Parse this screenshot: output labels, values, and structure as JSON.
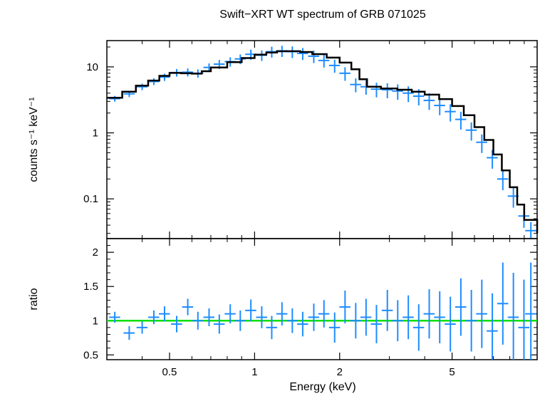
{
  "chart_data": [
    {
      "type": "scatter",
      "title": "Swift−XRT WT spectrum of GRB 071025",
      "xlabel": "Energy (keV)",
      "ylabel": "counts s⁻¹ keV⁻¹",
      "x_scale": "log",
      "y_scale": "log",
      "xlim": [
        0.3,
        10
      ],
      "ylim": [
        0.025,
        25
      ],
      "x_ticks": [
        {
          "value": 0.5,
          "label": "0.5"
        },
        {
          "value": 1,
          "label": "1"
        },
        {
          "value": 2,
          "label": "2"
        },
        {
          "value": 5,
          "label": "5"
        }
      ],
      "y_ticks": [
        {
          "value": 10,
          "label": "10"
        },
        {
          "value": 1,
          "label": "1"
        },
        {
          "value": 0.1,
          "label": "0.1"
        }
      ],
      "grid": false,
      "colors": {
        "data": "#1e8cff",
        "model": "#000000"
      },
      "series": [
        {
          "kind": "data",
          "x": [
            0.32,
            0.36,
            0.4,
            0.44,
            0.48,
            0.53,
            0.58,
            0.63,
            0.69,
            0.75,
            0.82,
            0.89,
            0.97,
            1.06,
            1.15,
            1.25,
            1.36,
            1.48,
            1.62,
            1.76,
            1.92,
            2.09,
            2.28,
            2.48,
            2.7,
            2.95,
            3.21,
            3.5,
            3.81,
            4.15,
            4.52,
            4.93,
            5.37,
            5.85,
            6.37,
            6.94,
            7.56,
            8.24,
            8.98,
            9.5
          ],
          "y": [
            3.3,
            3.9,
            5.0,
            6.0,
            7.0,
            8.2,
            8.3,
            8.0,
            9.8,
            11.0,
            12.0,
            13.2,
            15.5,
            15.0,
            17.0,
            17.5,
            17.0,
            16.0,
            14.5,
            12.5,
            10.5,
            8.0,
            5.4,
            5.0,
            4.6,
            4.5,
            4.3,
            4.0,
            3.6,
            3.1,
            2.6,
            2.1,
            1.6,
            1.1,
            0.72,
            0.42,
            0.2,
            0.11,
            0.055,
            0.033
          ]
        },
        {
          "kind": "model",
          "x": [
            0.3,
            0.34,
            0.38,
            0.42,
            0.46,
            0.5,
            0.55,
            0.6,
            0.65,
            0.7,
            0.8,
            0.9,
            1.0,
            1.1,
            1.2,
            1.3,
            1.45,
            1.6,
            1.8,
            2.0,
            2.2,
            2.35,
            2.5,
            2.8,
            3.2,
            3.6,
            4.0,
            4.5,
            5.0,
            5.5,
            6.0,
            6.5,
            7.0,
            7.5,
            8.0,
            8.5,
            9.0,
            10.0
          ],
          "y": [
            3.4,
            4.2,
            5.2,
            6.2,
            7.3,
            8.1,
            8.0,
            7.9,
            8.6,
            9.8,
            11.8,
            13.6,
            15.3,
            16.5,
            17.2,
            17.3,
            16.8,
            15.6,
            13.8,
            11.6,
            9.2,
            6.5,
            5.0,
            4.7,
            4.5,
            4.2,
            3.8,
            3.25,
            2.55,
            1.85,
            1.22,
            0.78,
            0.47,
            0.27,
            0.15,
            0.082,
            0.048,
            0.03
          ]
        }
      ]
    },
    {
      "type": "scatter",
      "xlabel": "Energy (keV)",
      "ylabel": "ratio",
      "x_scale": "log",
      "y_scale": "linear",
      "xlim": [
        0.3,
        10
      ],
      "ylim": [
        0.43,
        2.2
      ],
      "y_ticks": [
        {
          "value": 2,
          "label": "2"
        },
        {
          "value": 1.5,
          "label": "1.5"
        },
        {
          "value": 1,
          "label": "1"
        },
        {
          "value": 0.5,
          "label": "0.5"
        }
      ],
      "reference_line": 1,
      "colors": {
        "data": "#1e8cff",
        "reference": "#00e000"
      },
      "series": [
        {
          "kind": "ratio",
          "x": [
            0.32,
            0.36,
            0.4,
            0.44,
            0.48,
            0.53,
            0.58,
            0.63,
            0.69,
            0.75,
            0.82,
            0.89,
            0.97,
            1.06,
            1.15,
            1.25,
            1.36,
            1.48,
            1.62,
            1.76,
            1.92,
            2.09,
            2.28,
            2.48,
            2.7,
            2.95,
            3.21,
            3.5,
            3.81,
            4.15,
            4.52,
            4.93,
            5.37,
            5.85,
            6.37,
            6.94,
            7.56,
            8.24,
            8.98,
            9.5
          ],
          "y": [
            1.05,
            0.82,
            0.9,
            1.05,
            1.1,
            0.95,
            1.2,
            1.0,
            1.05,
            0.95,
            1.1,
            1.0,
            1.15,
            1.05,
            0.9,
            1.1,
            1.0,
            0.95,
            1.05,
            1.1,
            0.9,
            1.2,
            1.0,
            1.05,
            0.95,
            1.15,
            1.0,
            1.05,
            0.9,
            1.1,
            1.05,
            0.95,
            1.2,
            1.0,
            1.1,
            0.85,
            1.25,
            1.05,
            0.9,
            1.1
          ],
          "err": [
            0.08,
            0.1,
            0.09,
            0.1,
            0.11,
            0.12,
            0.12,
            0.13,
            0.13,
            0.14,
            0.14,
            0.15,
            0.16,
            0.16,
            0.17,
            0.17,
            0.18,
            0.18,
            0.2,
            0.2,
            0.22,
            0.24,
            0.26,
            0.27,
            0.28,
            0.3,
            0.3,
            0.32,
            0.34,
            0.36,
            0.38,
            0.4,
            0.42,
            0.45,
            0.5,
            0.55,
            0.6,
            0.65,
            0.7,
            0.75
          ]
        }
      ]
    }
  ]
}
